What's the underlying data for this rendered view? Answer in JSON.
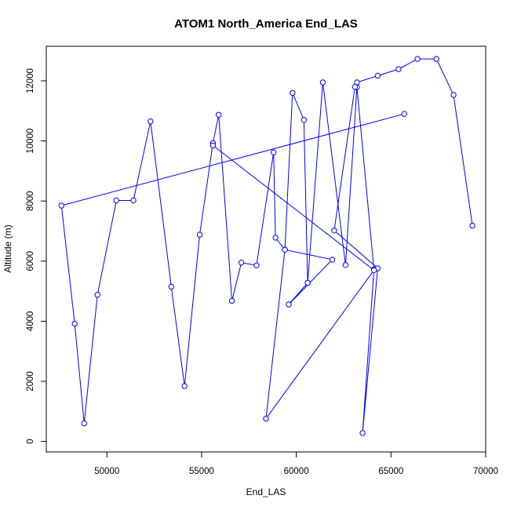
{
  "chart_data": {
    "type": "line",
    "title": "ATOM1 North_America End_LAS",
    "xlabel": "End_LAS",
    "ylabel": "Altitude (m)",
    "xlim": [
      46800,
      70000
    ],
    "ylim": [
      -350,
      13150
    ],
    "x_ticks": [
      50000,
      55000,
      60000,
      65000,
      70000
    ],
    "y_ticks": [
      0,
      2000,
      4000,
      6000,
      8000,
      10000,
      12000
    ],
    "x_tick_labels": [
      "50000",
      "55000",
      "60000",
      "65000",
      "70000"
    ],
    "y_tick_labels": [
      "0",
      "2000",
      "4000",
      "6000",
      "8000",
      "10000",
      "12000"
    ],
    "grid": false,
    "legend": "none",
    "color": "#0000ff",
    "markers": "open-circle",
    "series": [
      {
        "x": [
          65700,
          47600,
          48300,
          48800,
          49500,
          50500,
          51400,
          52300,
          53400,
          54100,
          54900,
          55600,
          55900,
          56600,
          57100,
          57900,
          58800,
          58900,
          59400,
          59800,
          60400,
          60600,
          61400,
          62600,
          63200,
          64100,
          63500,
          64300,
          62000,
          63100,
          63200,
          64300,
          65400,
          66400,
          67400,
          68300,
          69300
        ],
        "y": [
          10900,
          7850,
          3920,
          600,
          4880,
          8020,
          8020,
          10650,
          5150,
          1840,
          6880,
          9930,
          10870,
          4680,
          5950,
          5860,
          9620,
          6780,
          6380,
          11600,
          10700,
          5280,
          11950,
          5870,
          11790,
          5720,
          280,
          5760,
          7020,
          11800,
          11950,
          12170,
          12390,
          12730,
          12730,
          11530,
          7180
        ]
      },
      {
        "x": [
          55600,
          64100,
          58400,
          59400,
          61900,
          59600,
          60600
        ],
        "y": [
          9850,
          5700,
          760,
          6380,
          6050,
          4560,
          5280
        ]
      }
    ]
  }
}
